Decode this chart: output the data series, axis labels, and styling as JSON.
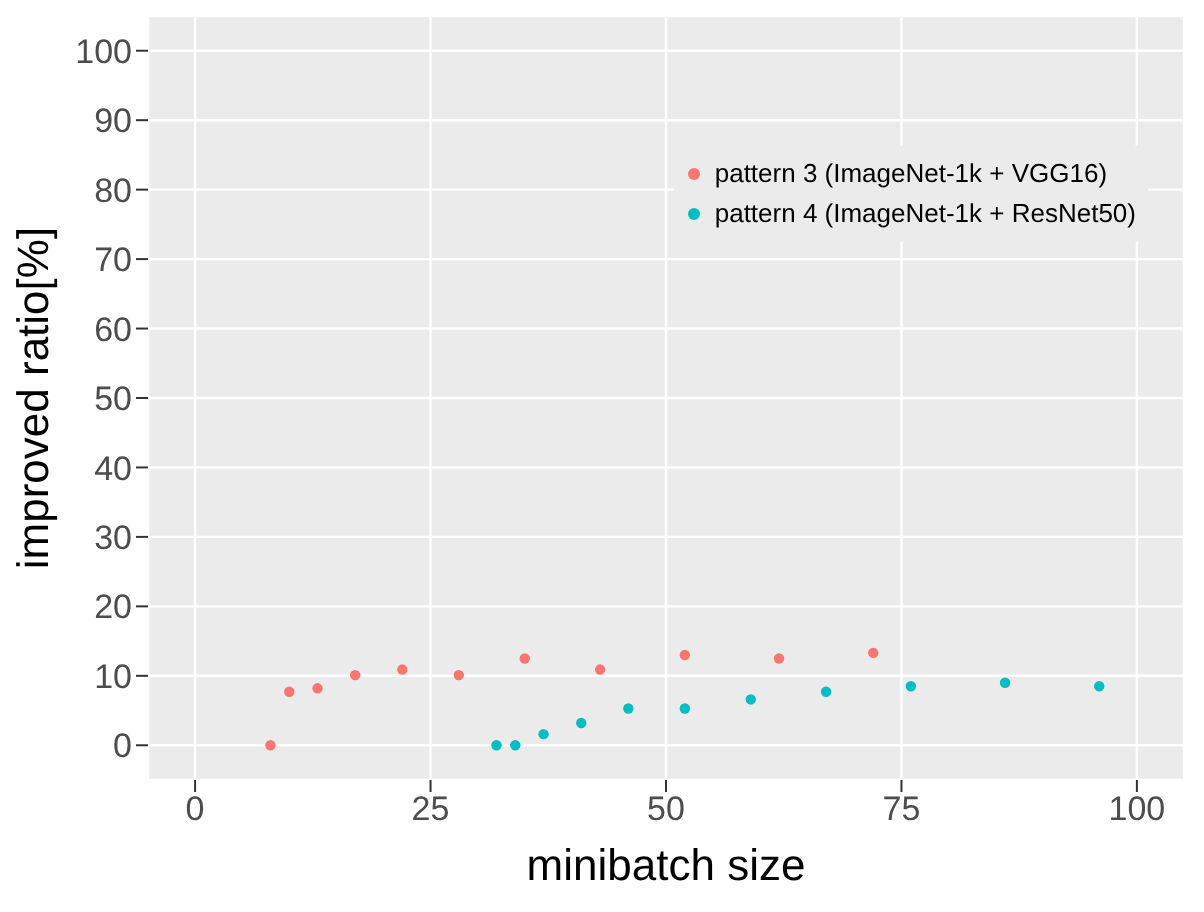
{
  "chart_data": {
    "type": "scatter",
    "xlabel": "minibatch size",
    "ylabel": "improved ratio[%]",
    "xlim": [
      -5,
      105
    ],
    "ylim": [
      -5,
      105
    ],
    "xticks": [
      0,
      25,
      50,
      75,
      100
    ],
    "yticks": [
      0,
      10,
      20,
      30,
      40,
      50,
      60,
      70,
      80,
      90,
      100
    ],
    "grid": true,
    "legend": "top right",
    "marker": "circle",
    "series": [
      {
        "name": "pattern 3 (ImageNet-1k + VGG16)",
        "color": "#f8766d",
        "x": [
          8,
          10,
          13,
          17,
          22,
          28,
          35,
          43,
          52,
          62,
          72
        ],
        "values": [
          0,
          7.7,
          8.2,
          10.1,
          10.9,
          10.1,
          12.5,
          10.9,
          13,
          12.5,
          13.3
        ]
      },
      {
        "name": "pattern 4 (ImageNet-1k + ResNet50)",
        "color": "#00bfc4",
        "x": [
          32,
          34,
          37,
          41,
          46,
          52,
          59,
          67,
          76,
          86,
          96
        ],
        "values": [
          0,
          0,
          1.6,
          3.2,
          5.3,
          5.3,
          6.6,
          7.7,
          8.5,
          9,
          8.5
        ]
      }
    ]
  }
}
